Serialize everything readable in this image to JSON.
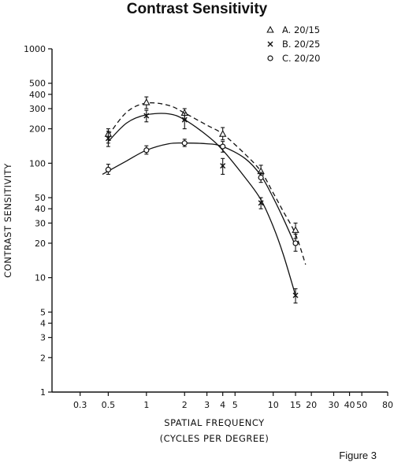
{
  "chart_data": {
    "type": "line",
    "title": "Contrast Sensitivity",
    "xlabel_line1": "SPATIAL FREQUENCY",
    "xlabel_line2": "(CYCLES PER DEGREE)",
    "ylabel": "CONTRAST SENSITIVITY",
    "x_scale": "log",
    "y_scale": "log",
    "xlim": [
      0.18,
      80
    ],
    "ylim": [
      1,
      1000
    ],
    "x_ticks": [
      {
        "value": 0.3,
        "label": "0.3"
      },
      {
        "value": 0.5,
        "label": "0.5"
      },
      {
        "value": 1,
        "label": "1"
      },
      {
        "value": 2,
        "label": "2"
      },
      {
        "value": 3,
        "label": "3"
      },
      {
        "value": 4,
        "label": "4"
      },
      {
        "value": 5,
        "label": "5"
      },
      {
        "value": 10,
        "label": "10"
      },
      {
        "value": 15,
        "label": "15"
      },
      {
        "value": 20,
        "label": "20"
      },
      {
        "value": 30,
        "label": "30"
      },
      {
        "value": 40,
        "label": "40"
      },
      {
        "value": 50,
        "label": "50"
      },
      {
        "value": 80,
        "label": "80"
      }
    ],
    "y_ticks": [
      {
        "value": 1,
        "label": "1"
      },
      {
        "value": 2,
        "label": "2"
      },
      {
        "value": 3,
        "label": "3"
      },
      {
        "value": 4,
        "label": "4"
      },
      {
        "value": 5,
        "label": "5"
      },
      {
        "value": 10,
        "label": "10"
      },
      {
        "value": 20,
        "label": "20"
      },
      {
        "value": 30,
        "label": "30"
      },
      {
        "value": 40,
        "label": "40"
      },
      {
        "value": 50,
        "label": "50"
      },
      {
        "value": 100,
        "label": "100"
      },
      {
        "value": 200,
        "label": "200"
      },
      {
        "value": 300,
        "label": "300"
      },
      {
        "value": 400,
        "label": "400"
      },
      {
        "value": 500,
        "label": "500"
      },
      {
        "value": 1000,
        "label": "1000"
      }
    ],
    "legend_position": "top-right",
    "series": [
      {
        "name": "A. 20/15",
        "marker": "triangle",
        "curve": "dashed",
        "x": [
          0.5,
          1,
          2,
          4,
          8,
          15
        ],
        "y": [
          180,
          340,
          275,
          180,
          85,
          26
        ],
        "err_low": [
          150,
          300,
          240,
          160,
          74,
          22
        ],
        "err_high": [
          200,
          380,
          300,
          205,
          96,
          30
        ],
        "fit_x": [
          0.5,
          0.7,
          1,
          1.5,
          2,
          3,
          4,
          6,
          8,
          10,
          12,
          15,
          18
        ],
        "fit_y": [
          175,
          280,
          335,
          320,
          275,
          215,
          180,
          120,
          85,
          55,
          38,
          24,
          13
        ]
      },
      {
        "name": "B. 20/25",
        "marker": "x",
        "curve": "solid",
        "x": [
          0.5,
          1,
          2,
          4,
          8,
          15
        ],
        "y": [
          165,
          260,
          240,
          95,
          45,
          7
        ],
        "err_low": [
          140,
          230,
          200,
          80,
          40,
          6
        ],
        "err_high": [
          190,
          290,
          275,
          110,
          50,
          8
        ],
        "fit_x": [
          0.5,
          0.7,
          1,
          1.5,
          2,
          3,
          4,
          6,
          8,
          10,
          12,
          15
        ],
        "fit_y": [
          155,
          225,
          265,
          270,
          240,
          175,
          130,
          75,
          48,
          28,
          16,
          7
        ]
      },
      {
        "name": "C. 20/20",
        "marker": "circle",
        "curve": "solid",
        "x": [
          0.5,
          1,
          2,
          4,
          8,
          15
        ],
        "y": [
          88,
          130,
          150,
          140,
          75,
          20
        ],
        "err_low": [
          80,
          120,
          140,
          125,
          68,
          17
        ],
        "err_high": [
          98,
          142,
          162,
          155,
          83,
          24
        ],
        "fit_x": [
          0.45,
          0.7,
          1,
          1.5,
          2,
          3,
          4,
          6,
          8,
          10,
          12,
          15
        ],
        "fit_y": [
          80,
          105,
          130,
          148,
          150,
          148,
          140,
          110,
          78,
          50,
          33,
          19
        ]
      }
    ]
  },
  "figure_label": "Figure 3"
}
